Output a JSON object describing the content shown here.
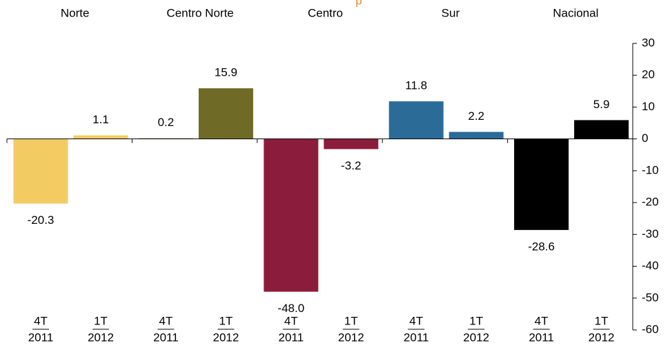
{
  "chart_data": {
    "type": "bar",
    "title": "p",
    "title_color": "#e08a2c",
    "categories": [
      "Norte",
      "Centro Norte",
      "Centro",
      "Sur",
      "Nacional"
    ],
    "colors": [
      "#f2cb62",
      "#6f6b26",
      "#8c1c3c",
      "#2b6b98",
      "#000000"
    ],
    "series": [
      {
        "name": "4T",
        "year": "2011",
        "values": [
          -20.3,
          0.2,
          -48.0,
          11.8,
          -28.6
        ],
        "value_labels": [
          "-20.3",
          "0.2",
          "-48.0",
          "11.8",
          "-28.6"
        ]
      },
      {
        "name": "1T",
        "year": "2012",
        "values": [
          1.1,
          15.9,
          -3.2,
          2.2,
          5.9
        ],
        "value_labels": [
          "1.1",
          "15.9",
          "-3.2",
          "2.2",
          "5.9"
        ]
      }
    ],
    "ylim": [
      -60,
      30
    ],
    "yticks": [
      -60,
      -50,
      -40,
      -30,
      -20,
      -10,
      0,
      10,
      20,
      30
    ],
    "y_axis_side": "right"
  }
}
